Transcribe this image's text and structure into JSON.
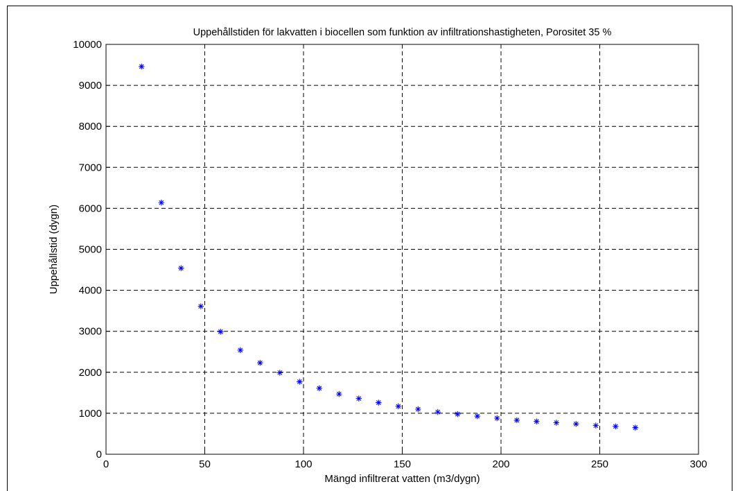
{
  "chart_data": {
    "type": "scatter",
    "title": "Uppehållstiden för lakvatten i biocellen som funktion av infiltrationshastigheten, Porositet 35 %",
    "xlabel": "Mängd infiltrerat vatten (m3/dygn)",
    "ylabel": "Uppehållstid (dygn)",
    "xlim": [
      0,
      300
    ],
    "ylim": [
      0,
      10000
    ],
    "x_ticks": [
      0,
      50,
      100,
      150,
      200,
      250,
      300
    ],
    "x_tick_labels": [
      "0",
      "50",
      "100",
      "150",
      "200",
      "250",
      "300"
    ],
    "y_ticks": [
      0,
      1000,
      2000,
      3000,
      4000,
      5000,
      6000,
      7000,
      8000,
      9000,
      10000
    ],
    "y_tick_labels": [
      "0",
      "1000",
      "2000",
      "3000",
      "4000",
      "5000",
      "6000",
      "7000",
      "8000",
      "9000",
      "10000"
    ],
    "grid": true,
    "marker": "asterisk",
    "marker_color": "#0000ff",
    "grid_color": "#000000",
    "series": [
      {
        "x": [
          18,
          28,
          38,
          48,
          58,
          68,
          78,
          88,
          98,
          108,
          118,
          128,
          138,
          148,
          158,
          168,
          178,
          188,
          198,
          208,
          218,
          228,
          238,
          248,
          258,
          268
        ],
        "y": [
          9460,
          6140,
          4540,
          3610,
          2990,
          2540,
          2230,
          1990,
          1770,
          1610,
          1470,
          1360,
          1260,
          1170,
          1100,
          1030,
          980,
          930,
          880,
          830,
          800,
          770,
          740,
          700,
          680,
          650
        ]
      }
    ]
  }
}
